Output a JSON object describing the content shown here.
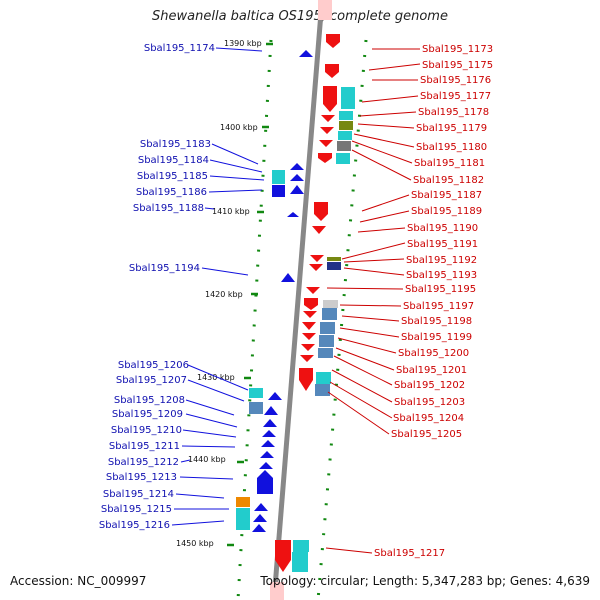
{
  "title": "Shewanella baltica OS195, complete genome",
  "footer": {
    "accession": "Accession: NC_009997",
    "summary": "Topology: circular; Length: 5,347,283 bp; Genes: 4,639"
  },
  "kbp_labels": [
    "1390 kbp",
    "1400 kbp",
    "1410 kbp",
    "1420 kbp",
    "1430 kbp",
    "1440 kbp",
    "1450 kbp"
  ],
  "left_labels": [
    "Sbal195_1174",
    "Sbal195_1183",
    "Sbal195_1184",
    "Sbal195_1185",
    "Sbal195_1186",
    "Sbal195_1188",
    "Sbal195_1194",
    "Sbal195_1206",
    "Sbal195_1207",
    "Sbal195_1208",
    "Sbal195_1209",
    "Sbal195_1210",
    "Sbal195_1211",
    "Sbal195_1212",
    "Sbal195_1213",
    "Sbal195_1214",
    "Sbal195_1215",
    "Sbal195_1216"
  ],
  "right_labels": [
    "Sbal195_1173",
    "Sbal195_1175",
    "Sbal195_1176",
    "Sbal195_1177",
    "Sbal195_1178",
    "Sbal195_1179",
    "Sbal195_1180",
    "Sbal195_1181",
    "Sbal195_1182",
    "Sbal195_1187",
    "Sbal195_1189",
    "Sbal195_1190",
    "Sbal195_1191",
    "Sbal195_1192",
    "Sbal195_1193",
    "Sbal195_1195",
    "Sbal195_1197",
    "Sbal195_1198",
    "Sbal195_1199",
    "Sbal195_1200",
    "Sbal195_1201",
    "Sbal195_1202",
    "Sbal195_1203",
    "Sbal195_1204",
    "Sbal195_1205",
    "Sbal195_1217"
  ],
  "colors": {
    "forward_strand": "#ee1111",
    "reverse_strand": "#1111dd",
    "cyan_feature": "#22cccc",
    "steelblue_feature": "#5588bb",
    "orange_feature": "#ee8800",
    "backbone": "#888888",
    "tick": "#118811"
  }
}
